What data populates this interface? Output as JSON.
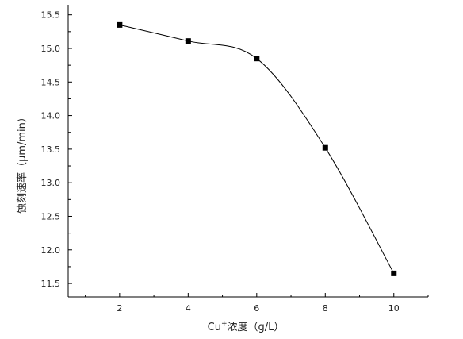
{
  "chart_data": {
    "type": "line",
    "x": [
      2,
      4,
      6,
      8,
      10
    ],
    "series": [
      {
        "values": [
          15.35,
          15.11,
          14.85,
          13.52,
          11.65
        ]
      }
    ],
    "xlabel": {
      "main": "Cu",
      "superscript": "+",
      "rest": "浓度（g/L）"
    },
    "ylabel": "蚀刻速率（μm/min）",
    "xticks": [
      "2",
      "4",
      "6",
      "8",
      "10"
    ],
    "yticks": [
      "11.5",
      "12.0",
      "12.5",
      "13.0",
      "13.5",
      "14.0",
      "14.5",
      "15.0",
      "15.5"
    ],
    "xlim": [
      0.5,
      11
    ],
    "ylim": [
      11.3,
      15.65
    ],
    "grid": false,
    "marker": "square",
    "line_style": "smooth",
    "colors": {
      "line": "#000000",
      "marker": "#000000",
      "axis": "#000000"
    }
  }
}
